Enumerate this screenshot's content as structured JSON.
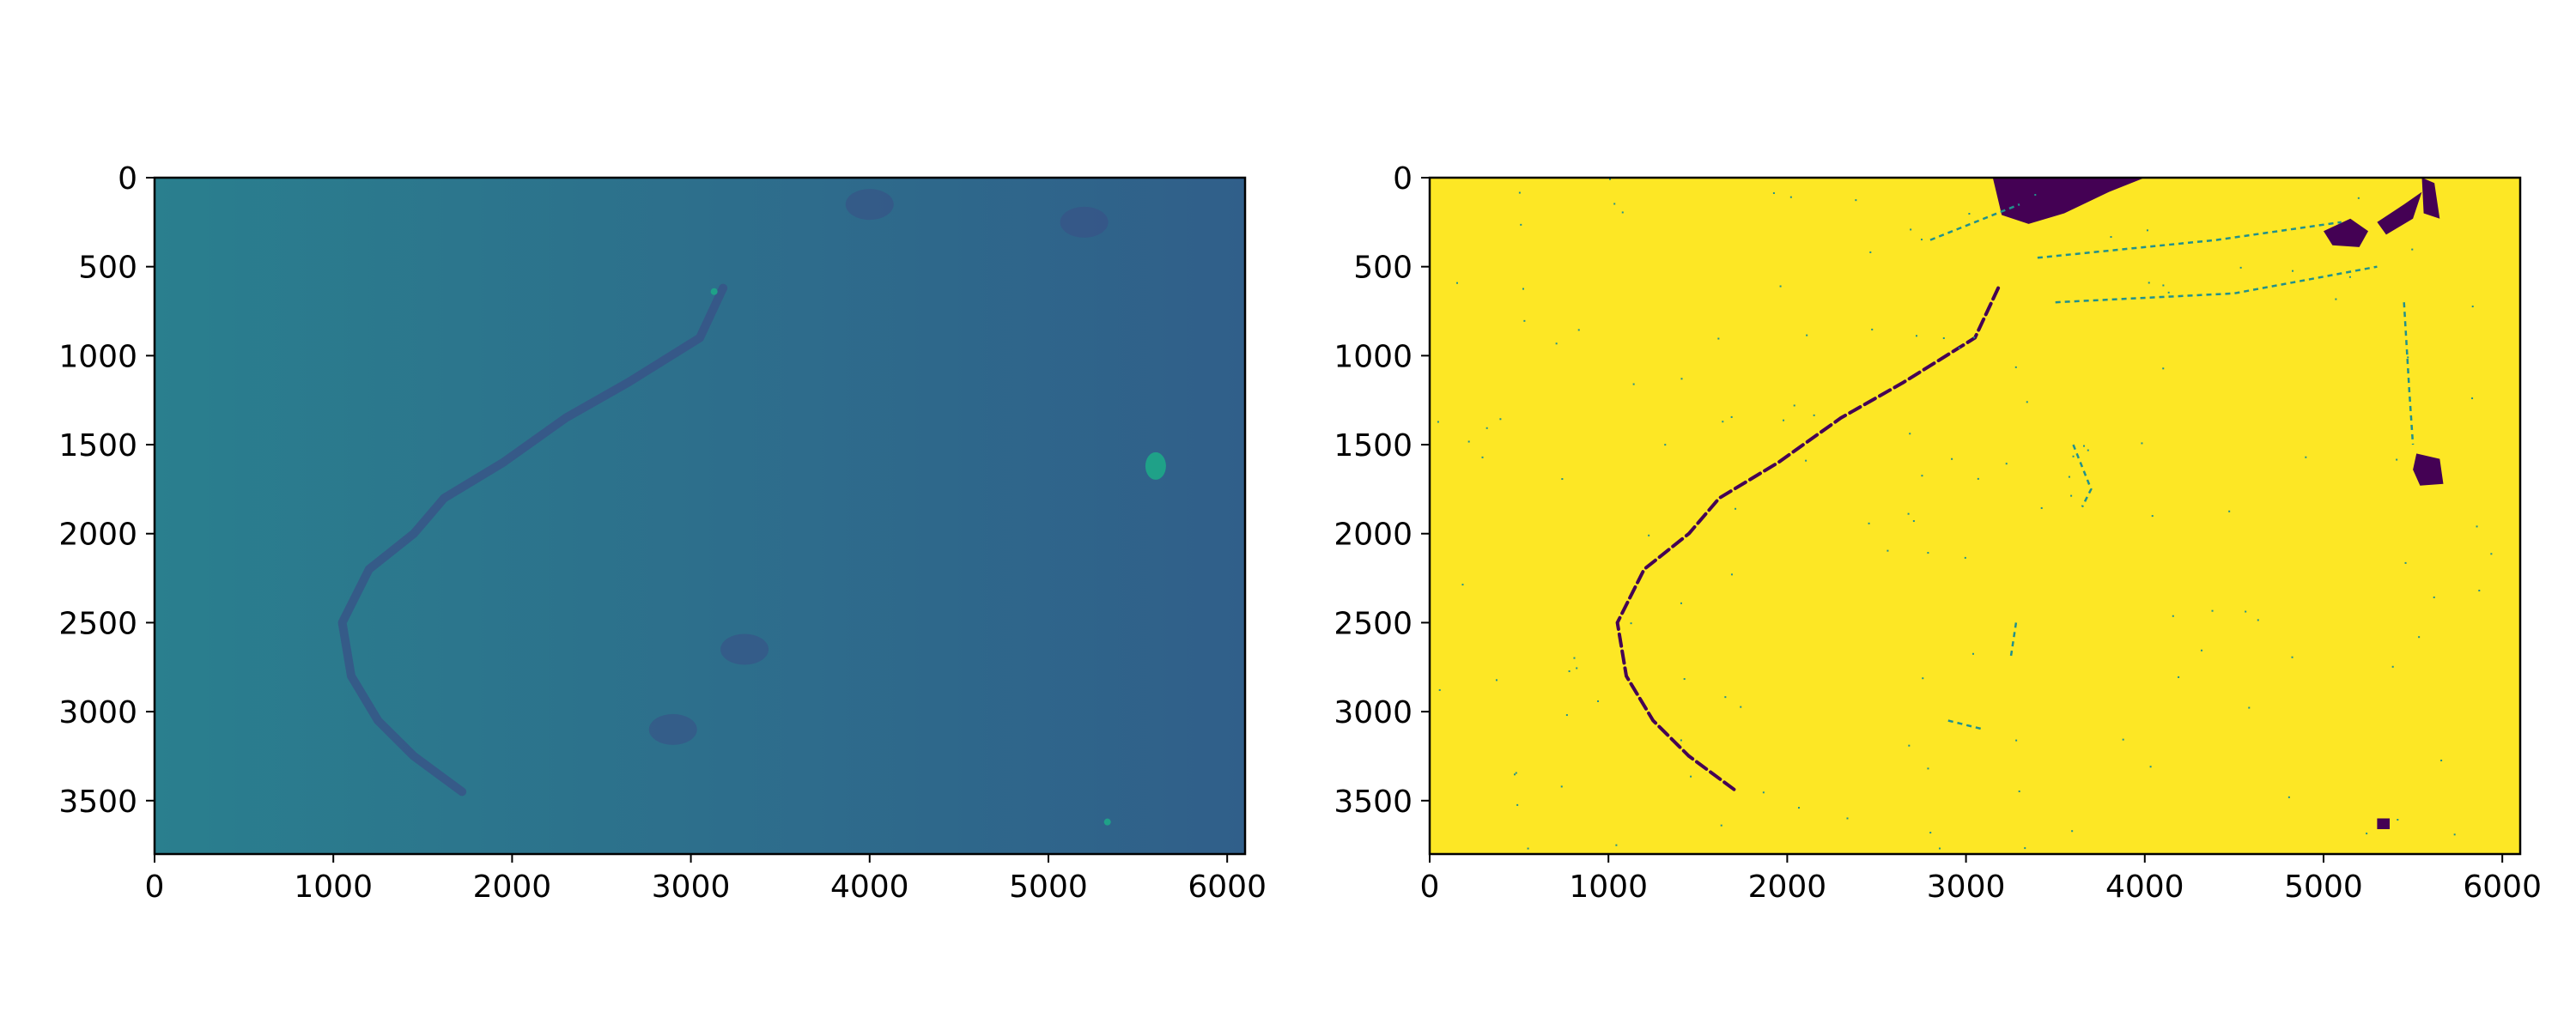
{
  "chart_data": [
    {
      "type": "heatmap",
      "title": "",
      "xlabel": "",
      "ylabel": "",
      "xlim": [
        0,
        6100
      ],
      "ylim": [
        3800,
        0
      ],
      "xticks": [
        0,
        1000,
        2000,
        3000,
        4000,
        5000,
        6000
      ],
      "yticks": [
        0,
        500,
        1000,
        1500,
        2000,
        2500,
        3000,
        3500
      ],
      "xtick_labels": [
        "0",
        "1000",
        "2000",
        "3000",
        "4000",
        "5000",
        "6000"
      ],
      "ytick_labels": [
        "0",
        "500",
        "1000",
        "1500",
        "2000",
        "2500",
        "3000",
        "3500"
      ],
      "colormap": "viridis",
      "colors": {
        "background_left": "#2a7f8e",
        "background_right": "#305f8a",
        "dark_features": "#3a4f86",
        "bright_features": "#1fa188"
      },
      "features": {
        "dark_curve": [
          [
            3180,
            620
          ],
          [
            3050,
            900
          ],
          [
            2650,
            1150
          ],
          [
            2300,
            1350
          ],
          [
            1950,
            1600
          ],
          [
            1620,
            1800
          ],
          [
            1450,
            2000
          ],
          [
            1200,
            2200
          ],
          [
            1050,
            2500
          ],
          [
            1100,
            2800
          ],
          [
            1250,
            3050
          ],
          [
            1450,
            3250
          ],
          [
            1720,
            3450
          ]
        ],
        "dark_blobs": [
          [
            3300,
            2650
          ],
          [
            4000,
            150
          ],
          [
            5200,
            250
          ],
          [
            2900,
            3100
          ]
        ],
        "bright_spots": [
          [
            5600,
            1620
          ],
          [
            3130,
            640
          ],
          [
            5330,
            3620
          ]
        ]
      }
    },
    {
      "type": "heatmap",
      "title": "",
      "xlabel": "",
      "ylabel": "",
      "xlim": [
        0,
        6100
      ],
      "ylim": [
        3800,
        0
      ],
      "xticks": [
        0,
        1000,
        2000,
        3000,
        4000,
        5000,
        6000
      ],
      "yticks": [
        0,
        500,
        1000,
        1500,
        2000,
        2500,
        3000,
        3500
      ],
      "xtick_labels": [
        "0",
        "1000",
        "2000",
        "3000",
        "4000",
        "5000",
        "6000"
      ],
      "ytick_labels": [
        "0",
        "500",
        "1000",
        "1500",
        "2000",
        "2500",
        "3000",
        "3500"
      ],
      "colormap": "viridis",
      "values_present": [
        0,
        1
      ],
      "colors": {
        "value_1": "#fde725",
        "value_0": "#440154",
        "speckle": "#21918c"
      },
      "features": {
        "dark_curve": [
          [
            3180,
            620
          ],
          [
            3050,
            900
          ],
          [
            2650,
            1150
          ],
          [
            2300,
            1350
          ],
          [
            1950,
            1600
          ],
          [
            1620,
            1800
          ],
          [
            1450,
            2000
          ],
          [
            1200,
            2200
          ],
          [
            1050,
            2500
          ],
          [
            1100,
            2800
          ],
          [
            1250,
            3050
          ],
          [
            1450,
            3250
          ],
          [
            1720,
            3450
          ]
        ],
        "dark_regions": [
          {
            "points": [
              [
                3150,
                0
              ],
              [
                4000,
                0
              ],
              [
                3800,
                80
              ],
              [
                3550,
                200
              ],
              [
                3350,
                260
              ],
              [
                3200,
                210
              ]
            ]
          },
          {
            "points": [
              [
                5000,
                300
              ],
              [
                5150,
                230
              ],
              [
                5250,
                300
              ],
              [
                5200,
                390
              ],
              [
                5050,
                380
              ]
            ]
          },
          {
            "points": [
              [
                5450,
                150
              ],
              [
                5550,
                80
              ],
              [
                5500,
                230
              ],
              [
                5350,
                320
              ],
              [
                5300,
                250
              ]
            ]
          },
          {
            "points": [
              [
                5550,
                0
              ],
              [
                5620,
                30
              ],
              [
                5650,
                230
              ],
              [
                5560,
                200
              ]
            ]
          },
          {
            "points": [
              [
                5520,
                1550
              ],
              [
                5650,
                1580
              ],
              [
                5670,
                1720
              ],
              [
                5540,
                1730
              ],
              [
                5500,
                1640
              ]
            ]
          },
          {
            "points": [
              [
                5300,
                3600
              ],
              [
                5370,
                3600
              ],
              [
                5370,
                3660
              ],
              [
                5300,
                3660
              ]
            ]
          }
        ],
        "thin_streaks": [
          [
            [
              2800,
              350
            ],
            [
              3300,
              150
            ]
          ],
          [
            [
              3400,
              450
            ],
            [
              4400,
              350
            ],
            [
              5100,
              250
            ]
          ],
          [
            [
              3500,
              700
            ],
            [
              4500,
              650
            ],
            [
              5300,
              500
            ]
          ],
          [
            [
              3600,
              1500
            ],
            [
              3700,
              1750
            ],
            [
              3650,
              1850
            ]
          ],
          [
            [
              5450,
              700
            ],
            [
              5480,
              1200
            ],
            [
              5500,
              1500
            ]
          ],
          [
            [
              3280,
              2500
            ],
            [
              3250,
              2700
            ]
          ],
          [
            [
              2900,
              3050
            ],
            [
              3100,
              3100
            ]
          ]
        ]
      }
    }
  ]
}
